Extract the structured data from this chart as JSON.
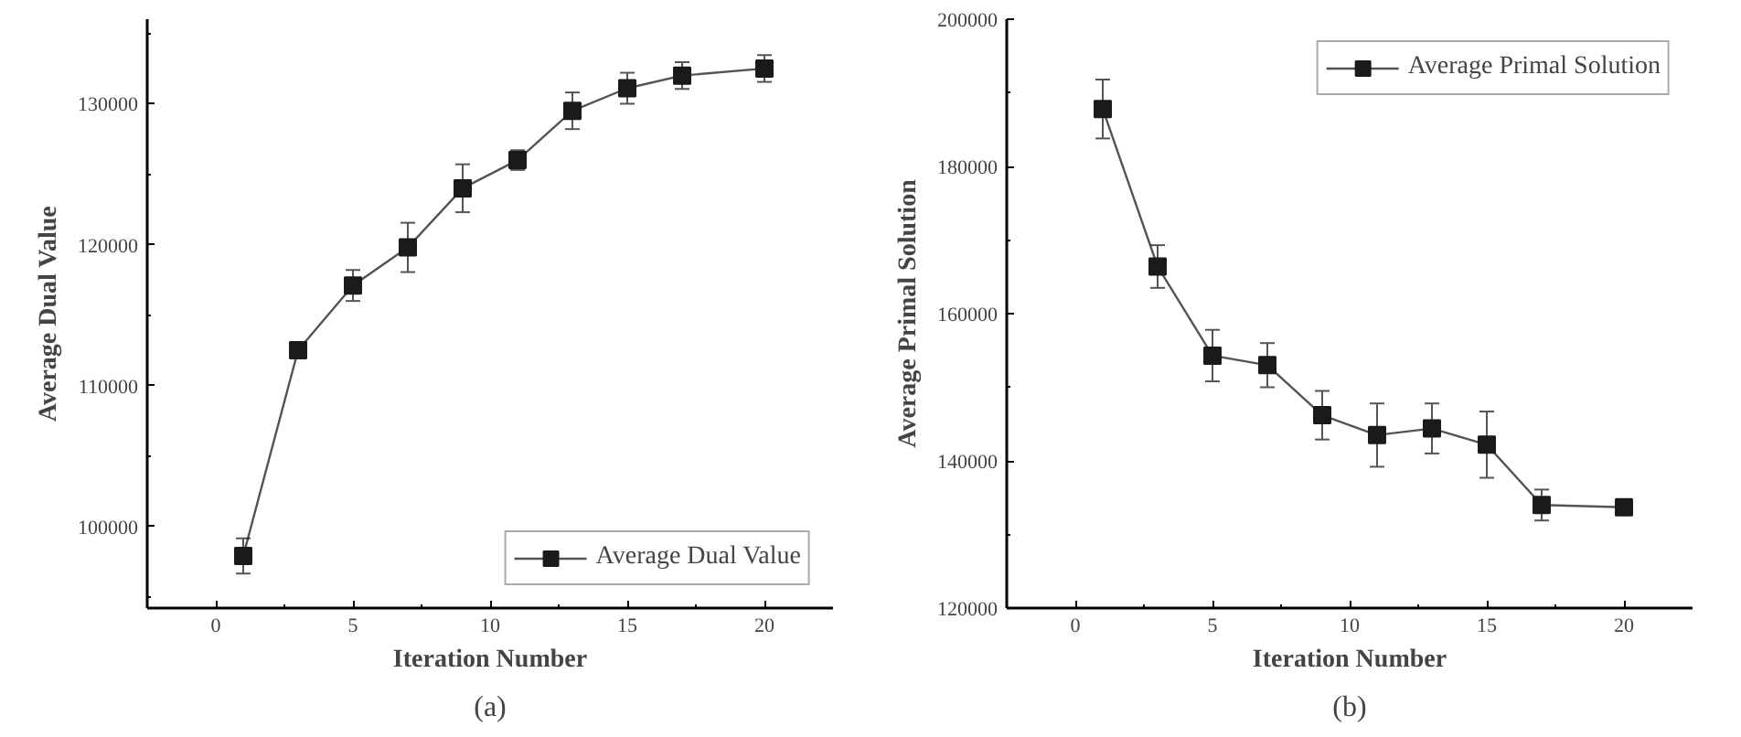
{
  "chart_data": [
    {
      "type": "line",
      "xlabel": "Iteration Number",
      "ylabel": "Average Dual Value",
      "annotations": [
        "(a)"
      ],
      "x": [
        1,
        3,
        5,
        7,
        9,
        11,
        13,
        15,
        17,
        20
      ],
      "series": [
        {
          "name": "Average Dual Value",
          "color": "#1a1a1a",
          "values": [
            97900,
            112500,
            117100,
            119800,
            124000,
            126000,
            129500,
            131100,
            132000,
            132500
          ],
          "errors": [
            1250,
            null,
            1100,
            1750,
            1700,
            700,
            1300,
            1100,
            950,
            950
          ]
        }
      ],
      "xlim": [
        -2.5,
        22.5
      ],
      "xticks": [
        0,
        {
          "value": 2.5,
          "label": null
        },
        5,
        {
          "value": 7.5,
          "label": null
        },
        10,
        {
          "value": 12.5,
          "label": null
        },
        15,
        {
          "value": 17.5,
          "label": null
        },
        20
      ],
      "ylim": [
        94200,
        136000
      ],
      "yticks": [
        {
          "value": 95000,
          "label": null
        },
        100000,
        {
          "value": 105000,
          "label": null
        },
        110000,
        {
          "value": 115000,
          "label": null
        },
        120000,
        {
          "value": 125000,
          "label": null
        },
        130000,
        {
          "value": 135000,
          "label": null
        }
      ],
      "legend": "bottom right",
      "marker": "square",
      "line_style": "solid",
      "grid": false
    },
    {
      "type": "line",
      "xlabel": "Iteration Number",
      "ylabel": "Average Primal Solution",
      "annotations": [
        "(b)"
      ],
      "x": [
        1,
        3,
        5,
        7,
        9,
        11,
        13,
        15,
        17,
        20
      ],
      "series": [
        {
          "name": "Average Primal Solution",
          "color": "#1a1a1a",
          "values": [
            187800,
            166400,
            154300,
            153000,
            146200,
            143500,
            144400,
            142200,
            134000,
            133700
          ],
          "errors": [
            4000,
            2900,
            3500,
            3000,
            3300,
            4300,
            3400,
            4500,
            2100,
            null
          ]
        }
      ],
      "xlim": [
        -2.5,
        22.5
      ],
      "xticks": [
        0,
        {
          "value": 2.5,
          "label": null
        },
        5,
        {
          "value": 7.5,
          "label": null
        },
        10,
        {
          "value": 12.5,
          "label": null
        },
        15,
        {
          "value": 17.5,
          "label": null
        },
        20
      ],
      "ylim": [
        120000,
        200000
      ],
      "yticks": [
        120000,
        {
          "value": 130000,
          "label": null
        },
        140000,
        {
          "value": 150000,
          "label": null
        },
        160000,
        {
          "value": 170000,
          "label": null
        },
        180000,
        {
          "value": 190000,
          "label": null
        },
        200000
      ],
      "legend": "top right",
      "marker": "square",
      "line_style": "solid",
      "grid": false
    }
  ]
}
